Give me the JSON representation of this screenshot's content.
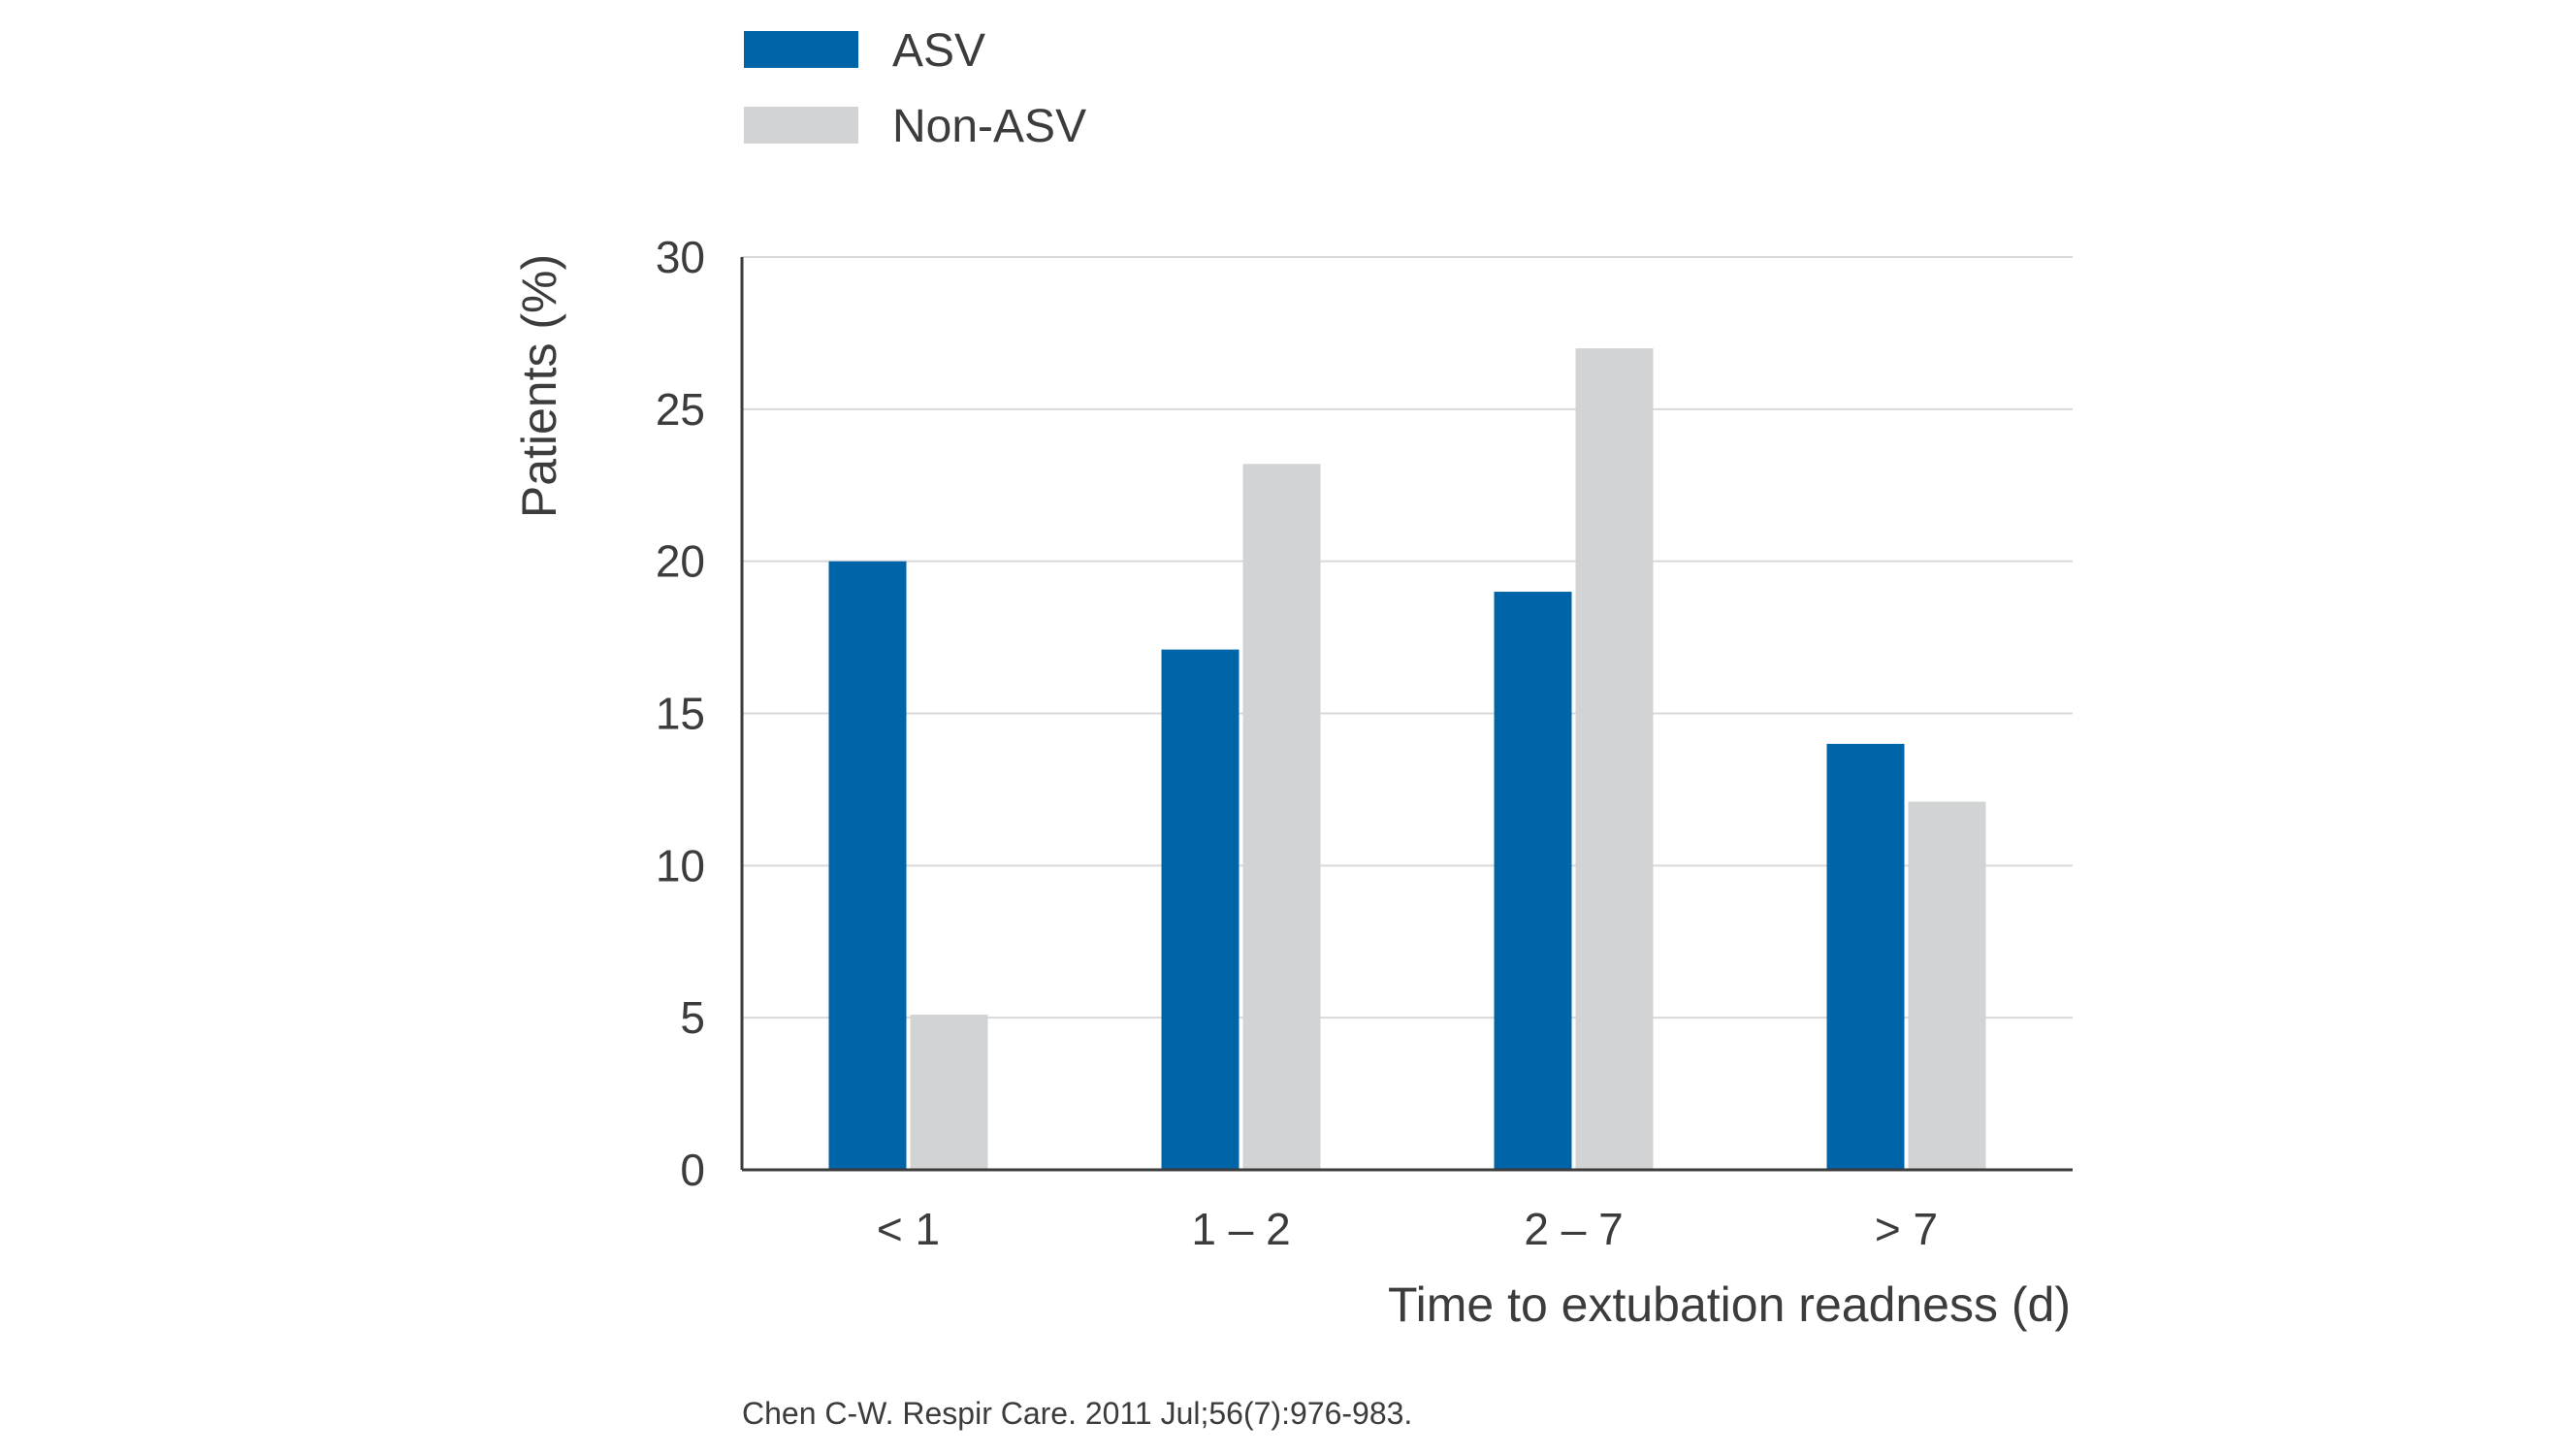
{
  "chart_data": {
    "type": "bar",
    "title": "",
    "xlabel": "Time to extubation readness (d)",
    "ylabel": "Patients (%)",
    "categories": [
      "< 1",
      "1 – 2",
      "2 – 7",
      "> 7"
    ],
    "series": [
      {
        "name": "ASV",
        "color": "#0065a8",
        "values": [
          20,
          17.1,
          19,
          14
        ]
      },
      {
        "name": "Non-ASV",
        "color": "#d1d3d4",
        "values": [
          5.1,
          23.2,
          27,
          12.1
        ]
      }
    ],
    "ylim": [
      0,
      30
    ],
    "yticks": [
      "0",
      "5",
      "10",
      "15",
      "20",
      "25",
      "30"
    ],
    "grid": true,
    "legend_position": "top-left",
    "source": "Chen C-W. Respir Care. 2011 Jul;56(7):976-983."
  }
}
